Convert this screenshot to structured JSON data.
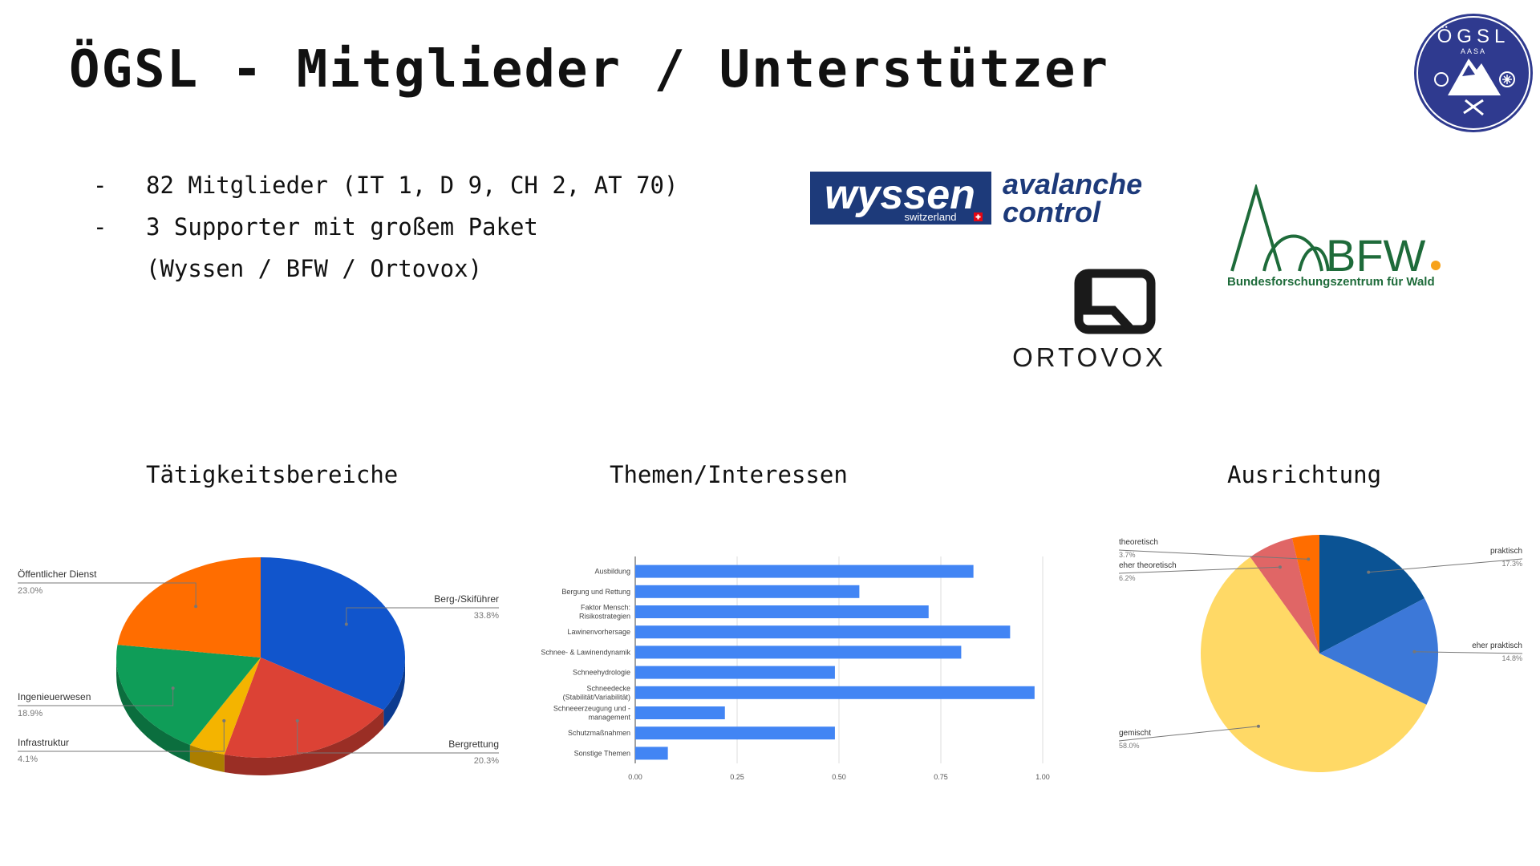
{
  "slide": {
    "title": "ÖGSL - Mitglieder / Unterstützer",
    "bullets": [
      "82 Mitglieder (IT 1, D 9, CH 2, AT 70)",
      "3 Supporter mit großem Paket",
      "(Wyssen / BFW / Ortovox)"
    ],
    "logos": {
      "wyssen_word": "wyssen",
      "wyssen_sub": "switzerland",
      "wyssen_tag1": "avalanche",
      "wyssen_tag2": "control",
      "ortovox": "ORTOVOX",
      "bfw": "BFW",
      "bfw_sub": "Bundesforschungszentrum für Wald",
      "oegsl_top": "ÖGSL",
      "oegsl_sub": "AASA"
    },
    "colors": {
      "accent_blue": "#4285f4",
      "oegsl_blue": "#2f3a8f",
      "bfw_green": "#1e6b3a",
      "bfw_orange": "#f7a21b",
      "wyssen_blue": "#1d3a7a"
    }
  },
  "chart_data": [
    {
      "type": "pie",
      "title": "Tätigkeitsbereiche",
      "categories": [
        "Berg-/Skiführer",
        "Bergrettung",
        "Infrastruktur",
        "Ingenieuerwesen",
        "Öffentlicher Dienst"
      ],
      "values": [
        33.8,
        20.3,
        4.1,
        18.9,
        23.0
      ],
      "value_labels": [
        "33.8%",
        "20.3%",
        "4.1%",
        "18.9%",
        "23.0%"
      ],
      "colors": [
        "#1155cc",
        "#dc4235",
        "#f4b400",
        "#0f9d58",
        "#ff6d00"
      ],
      "style": "3d"
    },
    {
      "type": "bar",
      "orientation": "horizontal",
      "title": "Themen/Interessen",
      "categories": [
        "Ausbildung",
        "Bergung und Rettung",
        "Faktor Mensch:\nRisikostrategien",
        "Lawinenvorhersage",
        "Schnee- & Lawinendynamik",
        "Schneehydrologie",
        "Schneedecke\n(Stabilität/Variabilität)",
        "Schneeerzeugung und -\nmanagement",
        "Schutzmaßnahmen",
        "Sonstige Themen"
      ],
      "values": [
        0.83,
        0.55,
        0.72,
        0.92,
        0.8,
        0.49,
        0.98,
        0.22,
        0.49,
        0.08
      ],
      "xlim": [
        0,
        1
      ],
      "xticks": [
        "0.00",
        "0.25",
        "0.50",
        "0.75",
        "1.00"
      ],
      "color": "#4285f4",
      "grid": true
    },
    {
      "type": "pie",
      "title": "Ausrichtung",
      "categories": [
        "praktisch",
        "eher praktisch",
        "gemischt",
        "eher theoretisch",
        "theoretisch"
      ],
      "values": [
        17.3,
        14.8,
        58.0,
        6.2,
        3.7
      ],
      "value_labels": [
        "17.3%",
        "14.8%",
        "58.0%",
        "6.2%",
        "3.7%"
      ],
      "colors": [
        "#0b5394",
        "#3c78d8",
        "#ffd966",
        "#e06666",
        "#ff6d00"
      ]
    }
  ]
}
